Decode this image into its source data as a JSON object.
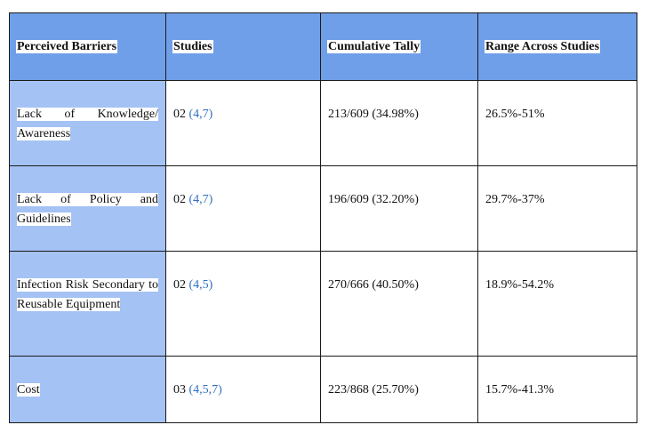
{
  "table": {
    "headers": {
      "barrier": "Perceived Barriers",
      "studies": "Studies",
      "tally": "Cumulative Tally",
      "range": "Range Across Studies"
    },
    "rows": [
      {
        "barrier": "Lack of Knowledge/ Awareness",
        "studies_count": "02",
        "studies_refs": "(4,7)",
        "tally": "213/609 (34.98%)",
        "range": "26.5%-51%"
      },
      {
        "barrier": "Lack of Policy and Guidelines",
        "studies_count": "02",
        "studies_refs": "(4,7)",
        "tally": "196/609 (32.20%)",
        "range": "29.7%-37%"
      },
      {
        "barrier": "Infection Risk Secondary to Reusable Equipment",
        "studies_count": "02",
        "studies_refs": "(4,5)",
        "tally": "270/666 (40.50%)",
        "range": "18.9%-54.2%"
      },
      {
        "barrier": "Cost",
        "studies_count": "03",
        "studies_refs": "(4,5,7)",
        "tally": "223/868 (25.70%)",
        "range": "15.7%-41.3%"
      }
    ]
  }
}
